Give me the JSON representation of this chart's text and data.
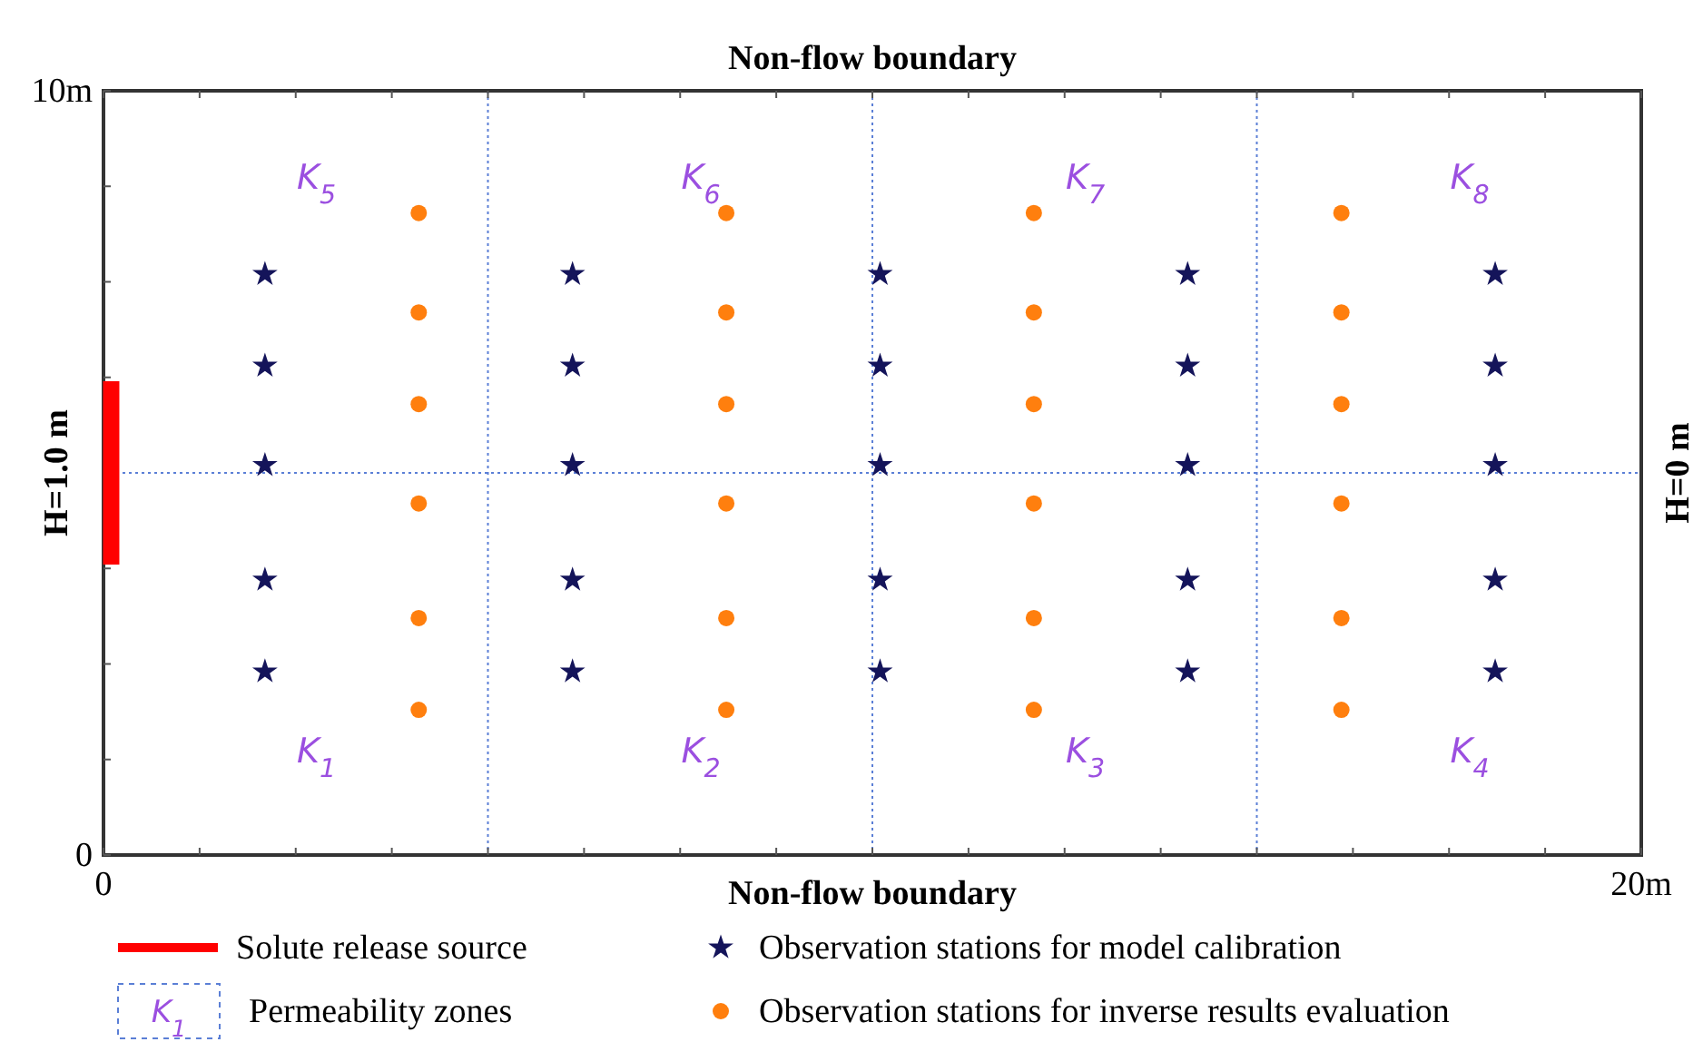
{
  "chart_data": {
    "type": "scatter",
    "title": "Non-flow boundary",
    "xlabel": "Non-flow boundary",
    "ylabel": "H=1.0 m",
    "y2label": "H=0 m",
    "xlim": [
      0,
      20
    ],
    "ylim": [
      0,
      10
    ],
    "xticks": [
      {
        "value": 0,
        "label": "0"
      },
      {
        "value": 1.25,
        "label": null
      },
      {
        "value": 2.5,
        "label": null
      },
      {
        "value": 3.75,
        "label": null
      },
      {
        "value": 5,
        "label": null
      },
      {
        "value": 6.25,
        "label": null
      },
      {
        "value": 7.5,
        "label": null
      },
      {
        "value": 8.75,
        "label": null
      },
      {
        "value": 10,
        "label": null
      },
      {
        "value": 11.25,
        "label": null
      },
      {
        "value": 12.5,
        "label": null
      },
      {
        "value": 13.75,
        "label": null
      },
      {
        "value": 15,
        "label": null
      },
      {
        "value": 16.25,
        "label": null
      },
      {
        "value": 17.5,
        "label": null
      },
      {
        "value": 18.75,
        "label": null
      },
      {
        "value": 20,
        "label": "20m"
      }
    ],
    "yticks": [
      {
        "value": 0,
        "label": "0"
      },
      {
        "value": 1.25,
        "label": null
      },
      {
        "value": 2.5,
        "label": null
      },
      {
        "value": 3.75,
        "label": null
      },
      {
        "value": 5,
        "label": null
      },
      {
        "value": 6.25,
        "label": null
      },
      {
        "value": 7.5,
        "label": null
      },
      {
        "value": 8.75,
        "label": null
      },
      {
        "value": 10,
        "label": "10m"
      }
    ],
    "grid": false,
    "legend": "bottom",
    "series": [
      {
        "name": "Solute release source",
        "type": "line",
        "color": "#ff0000",
        "marker": "none",
        "line_style": "solid",
        "x": [
          0.1,
          0.1
        ],
        "values": [
          3.8,
          6.2
        ]
      },
      {
        "name": "Observation stations for model calibration",
        "color": "#14145a",
        "marker": "star",
        "x": [
          2.1,
          2.1,
          2.1,
          2.1,
          2.1,
          6.1,
          6.1,
          6.1,
          6.1,
          6.1,
          10.1,
          10.1,
          10.1,
          10.1,
          10.1,
          14.1,
          14.1,
          14.1,
          14.1,
          14.1,
          18.1,
          18.1,
          18.1,
          18.1,
          18.1
        ],
        "values": [
          7.6,
          6.4,
          5.1,
          3.6,
          2.4,
          7.6,
          6.4,
          5.1,
          3.6,
          2.4,
          7.6,
          6.4,
          5.1,
          3.6,
          2.4,
          7.6,
          6.4,
          5.1,
          3.6,
          2.4,
          7.6,
          6.4,
          5.1,
          3.6,
          2.4
        ]
      },
      {
        "name": "Observation stations for inverse results evaluation",
        "color": "#ff7f0e",
        "marker": "circle",
        "x": [
          4.1,
          4.1,
          4.1,
          4.1,
          4.1,
          4.1,
          8.1,
          8.1,
          8.1,
          8.1,
          8.1,
          8.1,
          12.1,
          12.1,
          12.1,
          12.1,
          12.1,
          12.1,
          16.1,
          16.1,
          16.1,
          16.1,
          16.1,
          16.1
        ],
        "values": [
          8.4,
          7.1,
          5.9,
          4.6,
          3.1,
          1.9,
          8.4,
          7.1,
          5.9,
          4.6,
          3.1,
          1.9,
          8.4,
          7.1,
          5.9,
          4.6,
          3.1,
          1.9,
          8.4,
          7.1,
          5.9,
          4.6,
          3.1,
          1.9
        ]
      }
    ],
    "ref_lines": [
      {
        "axis": "x",
        "value": 5,
        "color": "#5b7fd6",
        "line_style": "dotted"
      },
      {
        "axis": "x",
        "value": 10,
        "color": "#5b7fd6",
        "line_style": "dotted"
      },
      {
        "axis": "x",
        "value": 15,
        "color": "#5b7fd6",
        "line_style": "dotted"
      },
      {
        "axis": "y",
        "value": 5,
        "color": "#5b7fd6",
        "line_style": "dotted"
      }
    ],
    "annotations": [
      "K$_{5}$",
      "K$_{6}$",
      "K$_{7}$",
      "K$_{8}$",
      "K$_{1}$",
      "K$_{2}$",
      "K$_{3}$",
      "K$_{4}$",
      "K$_{1}$",
      "Permeability zones"
    ]
  }
}
